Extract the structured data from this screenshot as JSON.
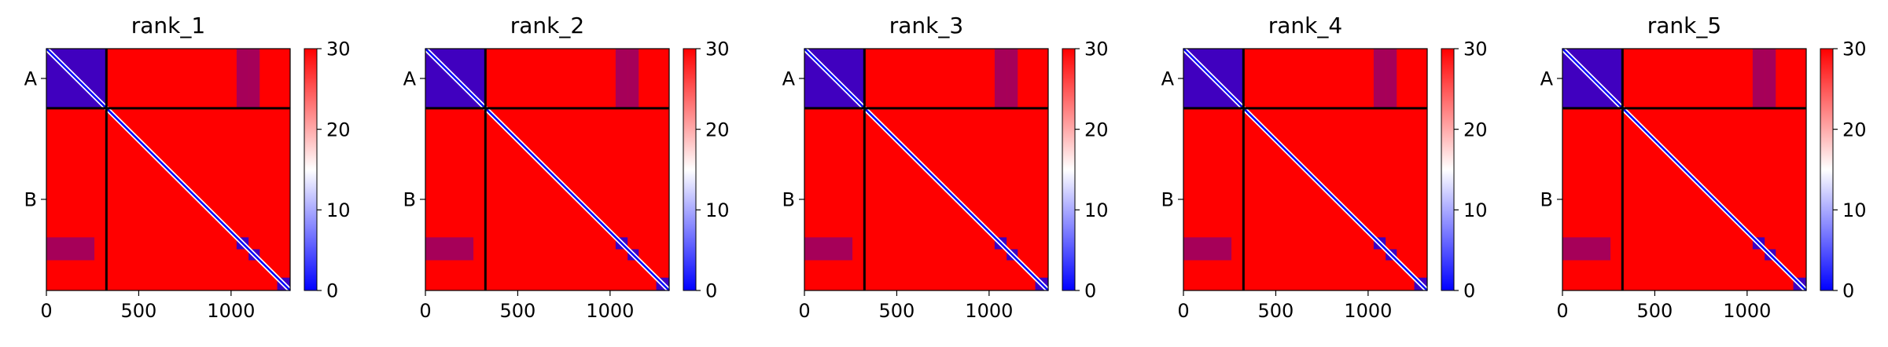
{
  "chart_data": [
    {
      "type": "heatmap",
      "title": "rank_1",
      "xlabel": "",
      "ylabel": "",
      "xticks": [
        0,
        500,
        1000
      ],
      "xlim": [
        0,
        1320
      ],
      "chains": [
        {
          "label": "A",
          "start": 0,
          "end": 325
        },
        {
          "label": "B",
          "start": 325,
          "end": 1320
        }
      ],
      "colorbar": {
        "min": 0,
        "max": 30,
        "ticks": [
          0,
          10,
          20,
          30
        ],
        "colormap": "bwr"
      },
      "domain_blocks": [
        [
          0,
          325
        ],
        [
          1030,
          1095
        ],
        [
          1095,
          1155
        ],
        [
          1250,
          1320
        ]
      ]
    },
    {
      "type": "heatmap",
      "title": "rank_2",
      "xlabel": "",
      "ylabel": "",
      "xticks": [
        0,
        500,
        1000
      ],
      "xlim": [
        0,
        1320
      ],
      "chains": [
        {
          "label": "A",
          "start": 0,
          "end": 325
        },
        {
          "label": "B",
          "start": 325,
          "end": 1320
        }
      ],
      "colorbar": {
        "min": 0,
        "max": 30,
        "ticks": [
          0,
          10,
          20,
          30
        ],
        "colormap": "bwr"
      },
      "domain_blocks": [
        [
          0,
          325
        ],
        [
          1030,
          1095
        ],
        [
          1095,
          1155
        ],
        [
          1250,
          1320
        ]
      ]
    },
    {
      "type": "heatmap",
      "title": "rank_3",
      "xlabel": "",
      "ylabel": "",
      "xticks": [
        0,
        500,
        1000
      ],
      "xlim": [
        0,
        1320
      ],
      "chains": [
        {
          "label": "A",
          "start": 0,
          "end": 325
        },
        {
          "label": "B",
          "start": 325,
          "end": 1320
        }
      ],
      "colorbar": {
        "min": 0,
        "max": 30,
        "ticks": [
          0,
          10,
          20,
          30
        ],
        "colormap": "bwr"
      },
      "domain_blocks": [
        [
          0,
          325
        ],
        [
          1030,
          1095
        ],
        [
          1095,
          1155
        ],
        [
          1250,
          1320
        ]
      ]
    },
    {
      "type": "heatmap",
      "title": "rank_4",
      "xlabel": "",
      "ylabel": "",
      "xticks": [
        0,
        500,
        1000
      ],
      "xlim": [
        0,
        1320
      ],
      "chains": [
        {
          "label": "A",
          "start": 0,
          "end": 325
        },
        {
          "label": "B",
          "start": 325,
          "end": 1320
        }
      ],
      "colorbar": {
        "min": 0,
        "max": 30,
        "ticks": [
          0,
          10,
          20,
          30
        ],
        "colormap": "bwr"
      },
      "domain_blocks": [
        [
          0,
          325
        ],
        [
          1030,
          1095
        ],
        [
          1095,
          1155
        ],
        [
          1250,
          1320
        ]
      ]
    },
    {
      "type": "heatmap",
      "title": "rank_5",
      "xlabel": "",
      "ylabel": "",
      "xticks": [
        0,
        500,
        1000
      ],
      "xlim": [
        0,
        1320
      ],
      "chains": [
        {
          "label": "A",
          "start": 0,
          "end": 325
        },
        {
          "label": "B",
          "start": 325,
          "end": 1320
        }
      ],
      "colorbar": {
        "min": 0,
        "max": 30,
        "ticks": [
          0,
          10,
          20,
          30
        ],
        "colormap": "bwr"
      },
      "domain_blocks": [
        [
          0,
          325
        ],
        [
          1030,
          1095
        ],
        [
          1095,
          1155
        ],
        [
          1250,
          1320
        ]
      ]
    }
  ],
  "colors": {
    "high": "#ff0000",
    "mid": "#ffffff",
    "low": "#0000ff",
    "divider": "#000000"
  }
}
